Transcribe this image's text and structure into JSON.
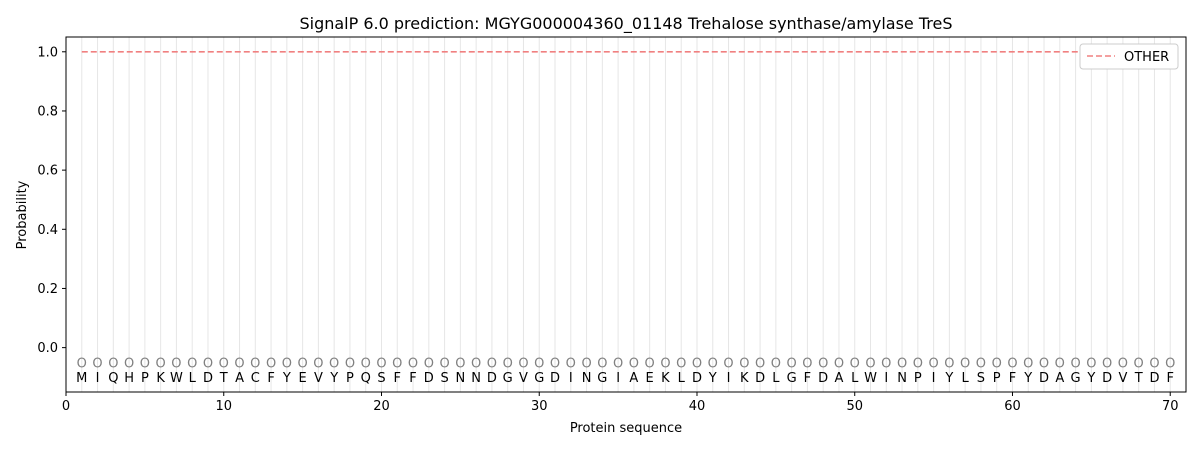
{
  "chart_data": {
    "type": "line",
    "title": "SignalP 6.0 prediction: MGYG000004360_01148 Trehalose synthase/amylase TreS",
    "xlabel": "Protein sequence",
    "ylabel": "Probability",
    "xlim": [
      0,
      71
    ],
    "ylim": [
      -0.15,
      1.05
    ],
    "x_ticks": [
      0,
      10,
      20,
      30,
      40,
      50,
      60,
      70
    ],
    "y_ticks": [
      0.0,
      0.2,
      0.4,
      0.6,
      0.8,
      1.0
    ],
    "y_tick_labels": [
      "0.0",
      "0.2",
      "0.4",
      "0.6",
      "0.8",
      "1.0"
    ],
    "grid": "vertical lines at each residue",
    "legend_position": "top-right",
    "series": [
      {
        "name": "OTHER",
        "color": "#f08080",
        "line_style": "dashed",
        "x_start": 1,
        "x_end": 70,
        "y": 1.0
      }
    ],
    "sequence": [
      "M",
      "I",
      "Q",
      "H",
      "P",
      "K",
      "W",
      "L",
      "D",
      "T",
      "A",
      "C",
      "F",
      "Y",
      "E",
      "V",
      "Y",
      "P",
      "Q",
      "S",
      "F",
      "F",
      "D",
      "S",
      "N",
      "N",
      "D",
      "G",
      "V",
      "G",
      "D",
      "I",
      "N",
      "G",
      "I",
      "A",
      "E",
      "K",
      "L",
      "D",
      "Y",
      "I",
      "K",
      "D",
      "L",
      "G",
      "F",
      "D",
      "A",
      "L",
      "W",
      "I",
      "N",
      "P",
      "I",
      "Y",
      "L",
      "S",
      "P",
      "F",
      "Y",
      "D",
      "A",
      "G",
      "Y",
      "D",
      "V",
      "T",
      "D",
      "F"
    ],
    "per_residue_label": "O",
    "per_residue_label_y": -0.05,
    "marker_color": "#808080"
  }
}
